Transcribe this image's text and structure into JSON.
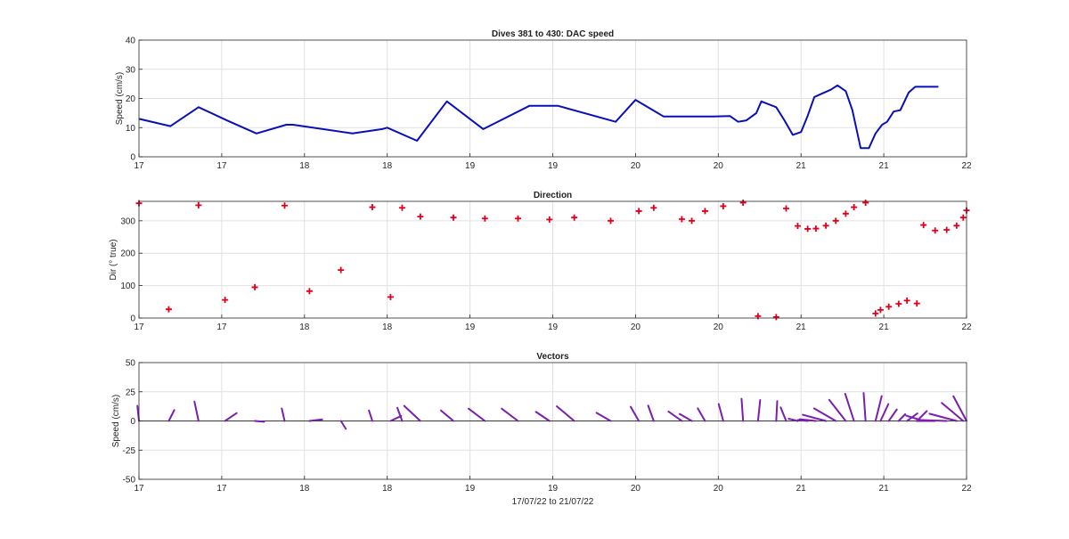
{
  "figure": {
    "xlabel": "17/07/22 to 21/07/22"
  },
  "x_tick_labels": [
    "17",
    "17",
    "18",
    "18",
    "19",
    "19",
    "20",
    "20",
    "21",
    "21",
    "22"
  ],
  "chart_data": [
    {
      "type": "line",
      "title": "Dives 381 to 430: DAC speed",
      "xlabel": "",
      "ylabel": "Speed (cm/s)",
      "xlim": [
        17.0,
        22.0
      ],
      "ylim": [
        0,
        40
      ],
      "yticks": [
        0,
        10,
        20,
        30,
        40
      ],
      "grid": true,
      "color": "#0a10b8",
      "series": [
        {
          "x": [
            17.0,
            17.19,
            17.36,
            17.55,
            17.71,
            17.89,
            17.93,
            18.29,
            18.47,
            18.5,
            18.68,
            18.86,
            19.08,
            19.36,
            19.53,
            19.88,
            20.0,
            20.17,
            20.32,
            20.37,
            20.47,
            20.57,
            20.62,
            20.67,
            20.73,
            20.76,
            20.85,
            20.9,
            20.95,
            21.0,
            21.04,
            21.08,
            21.12,
            21.18,
            21.22,
            21.27,
            21.31,
            21.36,
            21.41,
            21.45,
            21.49,
            21.52,
            21.56,
            21.6,
            21.65,
            21.69,
            21.74,
            21.78,
            21.83
          ],
          "y": [
            13,
            10.5,
            17,
            12,
            8,
            11,
            11,
            8,
            9.5,
            10,
            5.5,
            19,
            9.5,
            17.5,
            17.5,
            12,
            19.5,
            13.8,
            13.8,
            13.8,
            13.8,
            14,
            12,
            12.5,
            15,
            19,
            17,
            12.5,
            7.5,
            8.5,
            14,
            20.5,
            21.5,
            23,
            24.5,
            22.5,
            16,
            3,
            3,
            8,
            11,
            12,
            15.5,
            16,
            22,
            24,
            24,
            24,
            24
          ]
        }
      ]
    },
    {
      "type": "scatter",
      "title": "Direction",
      "xlabel": "",
      "ylabel": "Dir (° true)",
      "xlim": [
        17.0,
        22.0
      ],
      "ylim": [
        0,
        360
      ],
      "yticks": [
        0,
        100,
        200,
        300
      ],
      "grid": true,
      "marker": "+",
      "color": "#e0001c",
      "series": [
        {
          "x": [
            17.0,
            17.18,
            17.36,
            17.52,
            17.7,
            17.88,
            18.03,
            18.22,
            18.41,
            18.52,
            18.59,
            18.7,
            18.9,
            19.09,
            19.29,
            19.48,
            19.63,
            19.85,
            20.02,
            20.11,
            20.28,
            20.34,
            20.42,
            20.53,
            20.65,
            20.74,
            20.85,
            20.91,
            20.98,
            21.04,
            21.09,
            21.15,
            21.21,
            21.27,
            21.32,
            21.39,
            21.45,
            21.48,
            21.53,
            21.59,
            21.64,
            21.7,
            21.74,
            21.81,
            21.88,
            21.94,
            21.98,
            22.0
          ],
          "y": [
            354,
            27,
            348,
            56,
            95,
            347,
            83,
            148,
            342,
            65,
            340,
            313,
            310,
            307,
            307,
            304,
            310,
            300,
            330,
            340,
            305,
            300,
            330,
            345,
            356,
            6,
            3,
            338,
            284,
            275,
            276,
            285,
            300,
            322,
            342,
            356,
            14,
            25,
            35,
            44,
            54,
            45,
            287,
            270,
            272,
            285,
            310,
            332
          ]
        }
      ]
    },
    {
      "type": "vector",
      "title": "Vectors",
      "xlabel": "17/07/22 to 21/07/22",
      "ylabel": "Speed (cm/s)",
      "xlim": [
        17.0,
        22.0
      ],
      "ylim": [
        -50,
        50
      ],
      "yticks": [
        -50,
        -25,
        0,
        25,
        50
      ],
      "grid": true,
      "color": "#7a1fb0",
      "vectors": {
        "x": [
          17.0,
          17.18,
          17.36,
          17.52,
          17.7,
          17.88,
          18.03,
          18.22,
          18.41,
          18.52,
          18.59,
          18.7,
          18.9,
          19.09,
          19.29,
          19.48,
          19.63,
          19.85,
          20.02,
          20.11,
          20.28,
          20.34,
          20.42,
          20.53,
          20.65,
          20.74,
          20.85,
          20.91,
          20.98,
          21.04,
          21.09,
          21.15,
          21.21,
          21.27,
          21.32,
          21.39,
          21.45,
          21.48,
          21.53,
          21.59,
          21.64,
          21.7,
          21.74,
          21.81,
          21.88,
          21.94,
          21.98,
          22.0
        ],
        "dir": [
          354,
          27,
          348,
          56,
          95,
          347,
          83,
          148,
          342,
          65,
          340,
          313,
          310,
          307,
          307,
          304,
          310,
          300,
          330,
          340,
          305,
          300,
          330,
          345,
          356,
          6,
          3,
          338,
          284,
          275,
          276,
          285,
          300,
          322,
          342,
          356,
          14,
          25,
          35,
          44,
          54,
          45,
          287,
          270,
          272,
          285,
          310,
          332
        ],
        "speed": [
          13,
          10.5,
          17,
          12,
          8,
          11,
          11,
          8,
          9.5,
          10,
          12,
          19,
          14,
          17.5,
          17.5,
          14,
          19.5,
          14,
          14,
          14,
          14,
          12,
          12.5,
          15,
          19,
          18,
          17,
          12.5,
          8,
          8.5,
          14,
          20.5,
          21.5,
          23,
          24.5,
          24,
          22,
          16,
          12,
          8,
          11,
          12,
          15.5,
          16,
          22,
          24,
          24,
          24
        ]
      }
    }
  ]
}
